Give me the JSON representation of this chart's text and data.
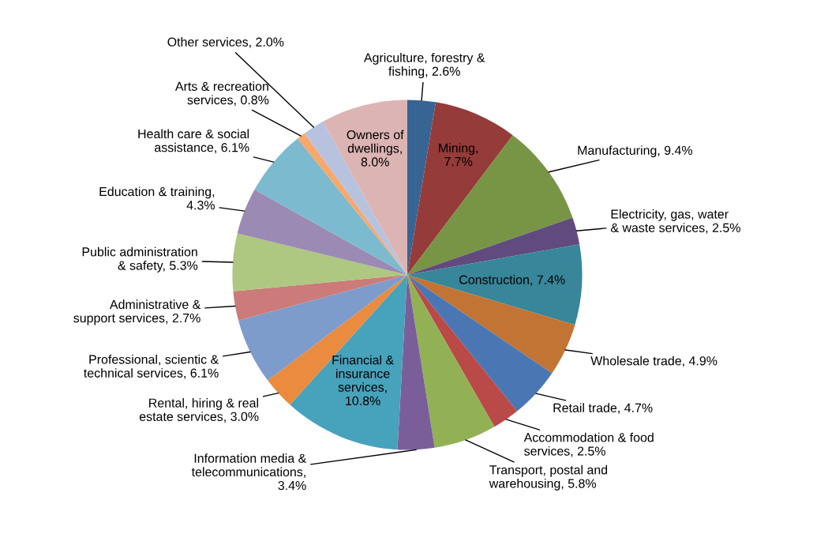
{
  "chart_data": {
    "type": "pie",
    "categories": [
      "Agriculture, forestry & fishing, 2.6%",
      "Mining, 7.7%",
      "Manufacturing, 9.4%",
      "Electricity, gas, water & waste services, 2.5%",
      "Construction, 7.4%",
      "Wholesale trade, 4.9%",
      "Retail trade, 4.7%",
      "Accommodation & food services, 2.5%",
      "Transport, postal and warehousing, 5.8%",
      "Information media & telecommunications, 3.4%",
      "Financial & insurance services, 10.8%",
      "Rental, hiring & real estate services, 3.0%",
      "Professional, scientic & technical services, 6.1%",
      "Administrative & support services, 2.7%",
      "Public administration & safety, 5.3%",
      "Education & training, 4.3%",
      "Health care & social assistance, 6.1%",
      "Arts & recreation services, 0.8%",
      "Other services, 2.0%",
      "Owners of dwellings, 8.0%"
    ],
    "values": [
      2.6,
      7.7,
      9.4,
      2.5,
      7.4,
      4.9,
      4.7,
      2.5,
      5.8,
      3.4,
      10.8,
      3.0,
      6.1,
      2.7,
      5.3,
      4.3,
      6.1,
      0.8,
      2.0,
      8.0
    ],
    "colors": [
      "#386494",
      "#953b39",
      "#779545",
      "#614b7e",
      "#378699",
      "#c27434",
      "#4a77b4",
      "#b94a48",
      "#92b154",
      "#7a5e9a",
      "#47a2bb",
      "#eb8b3f",
      "#7d9ccb",
      "#cb7b79",
      "#aec781",
      "#9b8ab3",
      "#7bbacf",
      "#f7a86d",
      "#b7c3de",
      "#dcb4b4"
    ]
  }
}
